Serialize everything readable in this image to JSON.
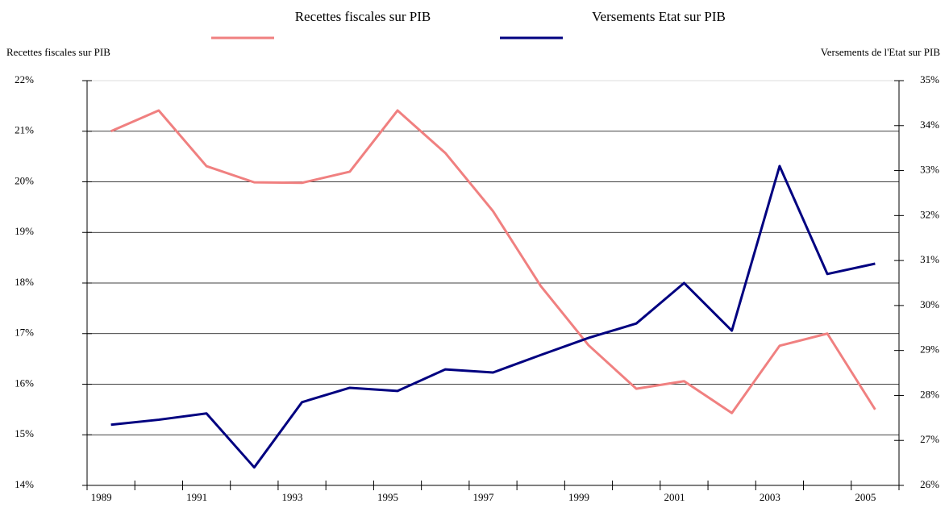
{
  "chart_data": {
    "type": "line",
    "legend_labels": [
      "Recettes fiscales sur PIB",
      "Versements Etat sur PIB"
    ],
    "ylabel": "Recettes fiscales sur PIB",
    "y2label": "Versements de l'Etat sur PIB",
    "categories": [
      "1989",
      null,
      "1991",
      null,
      "1993",
      null,
      "1995",
      null,
      "1997",
      null,
      "1999",
      null,
      "2001",
      null,
      "2003",
      null,
      "2005"
    ],
    "series": [
      {
        "name": "Recettes fiscales sur PIB",
        "color": "#f08080",
        "axis": "y",
        "values": [
          21.0,
          21.41,
          20.31,
          19.99,
          19.98,
          20.2,
          21.41,
          20.57,
          19.42,
          17.94,
          16.77,
          15.91,
          16.06,
          15.43,
          16.76,
          17.0,
          15.5
        ]
      },
      {
        "name": "Versements Etat sur PIB",
        "color": "#000080",
        "axis": "y2",
        "values": [
          27.35,
          27.46,
          27.6,
          26.4,
          27.85,
          28.17,
          28.1,
          28.58,
          28.51,
          28.9,
          29.28,
          29.6,
          30.5,
          29.44,
          33.1,
          30.7,
          30.93
        ]
      }
    ],
    "ylim": [
      14,
      22
    ],
    "yticks": [
      {
        "value": 14,
        "label": "14%"
      },
      {
        "value": 15,
        "label": "15%"
      },
      {
        "value": 16,
        "label": "16%"
      },
      {
        "value": 17,
        "label": "17%"
      },
      {
        "value": 18,
        "label": "18%"
      },
      {
        "value": 19,
        "label": "19%"
      },
      {
        "value": 20,
        "label": "20%"
      },
      {
        "value": 21,
        "label": "21%"
      },
      {
        "value": 22,
        "label": "22%"
      }
    ],
    "y2lim": [
      26,
      35
    ],
    "y2ticks": [
      {
        "value": 26,
        "label": "26%"
      },
      {
        "value": 27,
        "label": "27%"
      },
      {
        "value": 28,
        "label": "28%"
      },
      {
        "value": 29,
        "label": "29%"
      },
      {
        "value": 30,
        "label": "30%"
      },
      {
        "value": 31,
        "label": "31%"
      },
      {
        "value": 32,
        "label": "32%"
      },
      {
        "value": 33,
        "label": "33%"
      },
      {
        "value": 34,
        "label": "34%"
      },
      {
        "value": 35,
        "label": "35%"
      }
    ],
    "grid": true,
    "legend_position": "top"
  }
}
